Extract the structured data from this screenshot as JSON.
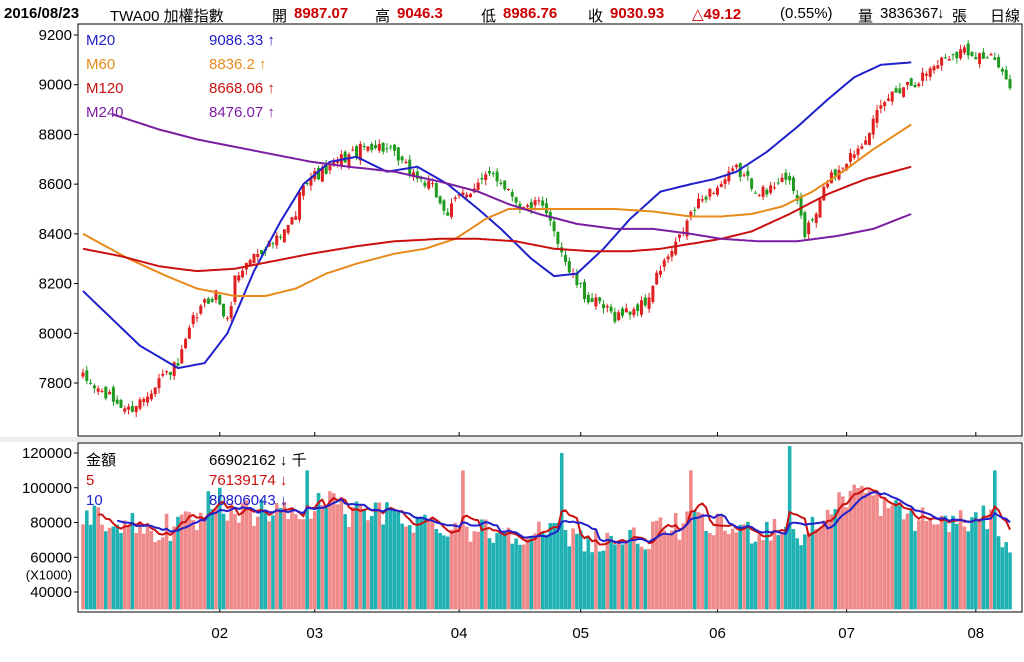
{
  "header": {
    "date": "2016/08/23",
    "symbol": "TWA00 加權指數",
    "open_label": "開",
    "open": "8987.07",
    "high_label": "高",
    "high": "9046.3",
    "low_label": "低",
    "low": "8986.76",
    "close_label": "收",
    "close": "9030.93",
    "change": "△49.12",
    "change_pct": "(0.55%)",
    "volume_label": "量",
    "volume": "3836367",
    "volume_arrow": "↓",
    "volume_unit": "張",
    "period": "日線"
  },
  "chart_data": [
    {
      "type": "candlestick",
      "ylim": [
        7600,
        9200
      ],
      "yticks": [
        7800,
        8000,
        8200,
        8400,
        8600,
        8800,
        9000,
        9200
      ],
      "x_tick_labels": [
        "02",
        "03",
        "04",
        "05",
        "06",
        "07",
        "08"
      ],
      "legend": [
        {
          "name": "M20",
          "value": "9086.33",
          "arrow": "↑",
          "color": "#2020cc"
        },
        {
          "name": "M60",
          "value": "8836.2",
          "arrow": "↑",
          "color": "#e88a1a"
        },
        {
          "name": "M120",
          "value": "8668.06",
          "arrow": "↑",
          "color": "#cc1010"
        },
        {
          "name": "M240",
          "value": "8476.07",
          "arrow": "↑",
          "color": "#7b1fa2"
        }
      ],
      "anchors": {
        "M20": [
          [
            0,
            8170
          ],
          [
            15,
            7950
          ],
          [
            25,
            7860
          ],
          [
            32,
            7880
          ],
          [
            38,
            8000
          ],
          [
            45,
            8250
          ],
          [
            52,
            8450
          ],
          [
            58,
            8600
          ],
          [
            65,
            8690
          ],
          [
            72,
            8710
          ],
          [
            80,
            8650
          ],
          [
            88,
            8670
          ],
          [
            96,
            8600
          ],
          [
            104,
            8500
          ],
          [
            110,
            8420
          ],
          [
            118,
            8300
          ],
          [
            124,
            8230
          ],
          [
            130,
            8240
          ],
          [
            137,
            8340
          ],
          [
            144,
            8460
          ],
          [
            152,
            8570
          ],
          [
            160,
            8600
          ],
          [
            166,
            8620
          ],
          [
            172,
            8650
          ],
          [
            180,
            8730
          ],
          [
            188,
            8830
          ],
          [
            196,
            8940
          ],
          [
            203,
            9030
          ],
          [
            210,
            9080
          ],
          [
            218,
            9090
          ]
        ],
        "M60": [
          [
            0,
            8400
          ],
          [
            12,
            8300
          ],
          [
            22,
            8230
          ],
          [
            30,
            8180
          ],
          [
            40,
            8150
          ],
          [
            48,
            8150
          ],
          [
            56,
            8180
          ],
          [
            64,
            8240
          ],
          [
            72,
            8280
          ],
          [
            82,
            8320
          ],
          [
            90,
            8340
          ],
          [
            98,
            8380
          ],
          [
            106,
            8460
          ],
          [
            112,
            8500
          ],
          [
            120,
            8500
          ],
          [
            130,
            8500
          ],
          [
            140,
            8500
          ],
          [
            150,
            8490
          ],
          [
            160,
            8470
          ],
          [
            168,
            8470
          ],
          [
            176,
            8480
          ],
          [
            184,
            8510
          ],
          [
            192,
            8570
          ],
          [
            200,
            8650
          ],
          [
            208,
            8740
          ],
          [
            218,
            8840
          ]
        ],
        "M120": [
          [
            0,
            8340
          ],
          [
            10,
            8310
          ],
          [
            20,
            8270
          ],
          [
            30,
            8250
          ],
          [
            40,
            8260
          ],
          [
            50,
            8290
          ],
          [
            60,
            8320
          ],
          [
            72,
            8350
          ],
          [
            82,
            8370
          ],
          [
            94,
            8380
          ],
          [
            104,
            8380
          ],
          [
            114,
            8370
          ],
          [
            124,
            8340
          ],
          [
            134,
            8330
          ],
          [
            144,
            8330
          ],
          [
            152,
            8340
          ],
          [
            160,
            8360
          ],
          [
            168,
            8380
          ],
          [
            176,
            8410
          ],
          [
            186,
            8480
          ],
          [
            196,
            8560
          ],
          [
            206,
            8620
          ],
          [
            218,
            8670
          ]
        ],
        "M240": [
          [
            8,
            8880
          ],
          [
            20,
            8820
          ],
          [
            30,
            8780
          ],
          [
            40,
            8750
          ],
          [
            50,
            8720
          ],
          [
            60,
            8690
          ],
          [
            70,
            8670
          ],
          [
            82,
            8650
          ],
          [
            94,
            8610
          ],
          [
            104,
            8570
          ],
          [
            112,
            8520
          ],
          [
            120,
            8480
          ],
          [
            130,
            8440
          ],
          [
            140,
            8420
          ],
          [
            150,
            8420
          ],
          [
            160,
            8400
          ],
          [
            168,
            8380
          ],
          [
            178,
            8370
          ],
          [
            188,
            8370
          ],
          [
            198,
            8390
          ],
          [
            208,
            8420
          ],
          [
            218,
            8480
          ]
        ]
      },
      "price_anchors": [
        [
          0,
          7820
        ],
        [
          6,
          7750
        ],
        [
          12,
          7690
        ],
        [
          16,
          7740
        ],
        [
          20,
          7820
        ],
        [
          25,
          7870
        ],
        [
          29,
          8050
        ],
        [
          32,
          8120
        ],
        [
          35,
          8160
        ],
        [
          38,
          8040
        ],
        [
          40,
          8220
        ],
        [
          44,
          8300
        ],
        [
          48,
          8350
        ],
        [
          52,
          8380
        ],
        [
          56,
          8480
        ],
        [
          58,
          8620
        ],
        [
          62,
          8640
        ],
        [
          65,
          8660
        ],
        [
          68,
          8700
        ],
        [
          72,
          8730
        ],
        [
          76,
          8760
        ],
        [
          80,
          8740
        ],
        [
          84,
          8680
        ],
        [
          88,
          8630
        ],
        [
          92,
          8580
        ],
        [
          96,
          8480
        ],
        [
          99,
          8550
        ],
        [
          104,
          8600
        ],
        [
          108,
          8640
        ],
        [
          112,
          8580
        ],
        [
          116,
          8500
        ],
        [
          120,
          8520
        ],
        [
          124,
          8420
        ],
        [
          128,
          8250
        ],
        [
          132,
          8150
        ],
        [
          136,
          8110
        ],
        [
          140,
          8070
        ],
        [
          144,
          8090
        ],
        [
          148,
          8120
        ],
        [
          152,
          8260
        ],
        [
          156,
          8350
        ],
        [
          160,
          8480
        ],
        [
          164,
          8560
        ],
        [
          168,
          8600
        ],
        [
          172,
          8660
        ],
        [
          176,
          8600
        ],
        [
          180,
          8560
        ],
        [
          184,
          8640
        ],
        [
          188,
          8540
        ],
        [
          190,
          8400
        ],
        [
          193,
          8480
        ],
        [
          196,
          8620
        ],
        [
          200,
          8680
        ],
        [
          204,
          8750
        ],
        [
          208,
          8850
        ],
        [
          212,
          8950
        ],
        [
          216,
          9000
        ],
        [
          220,
          9020
        ],
        [
          224,
          9080
        ],
        [
          228,
          9120
        ],
        [
          232,
          9140
        ],
        [
          236,
          9120
        ],
        [
          240,
          9100
        ],
        [
          242,
          9030
        ],
        [
          244,
          9010
        ]
      ]
    },
    {
      "type": "bar",
      "ylim": [
        30000,
        125000
      ],
      "yticks": [
        40000,
        60000,
        80000,
        100000,
        120000
      ],
      "unit_label": "(X1000)",
      "legend": [
        {
          "name": "金額",
          "value": "66902162",
          "arrow": "↓",
          "unit": "千",
          "color": "#000000"
        },
        {
          "name": "5",
          "value": "76139174",
          "arrow": "↓",
          "color": "#cc1010"
        },
        {
          "name": "10",
          "value": "80806043",
          "arrow": "↓",
          "color": "#2020cc"
        }
      ],
      "up_color": "#f08a8a",
      "down_color": "#20b2b2",
      "volume_anchors": [
        [
          0,
          85000
        ],
        [
          10,
          80000
        ],
        [
          20,
          75000
        ],
        [
          30,
          80000
        ],
        [
          40,
          85000
        ],
        [
          50,
          86000
        ],
        [
          60,
          85000
        ],
        [
          66,
          100000
        ],
        [
          70,
          85000
        ],
        [
          80,
          85000
        ],
        [
          90,
          80000
        ],
        [
          100,
          77000
        ],
        [
          108,
          75000
        ],
        [
          118,
          75000
        ],
        [
          128,
          72000
        ],
        [
          136,
          70000
        ],
        [
          146,
          70000
        ],
        [
          152,
          75000
        ],
        [
          160,
          80000
        ],
        [
          168,
          77000
        ],
        [
          176,
          75000
        ],
        [
          184,
          78000
        ],
        [
          190,
          72000
        ],
        [
          196,
          85000
        ],
        [
          204,
          100000
        ],
        [
          212,
          88000
        ],
        [
          220,
          82000
        ],
        [
          230,
          80000
        ],
        [
          238,
          82000
        ],
        [
          244,
          67000
        ]
      ],
      "spikes": [
        [
          22,
          85000
        ],
        [
          33,
          98000
        ],
        [
          36,
          100000
        ],
        [
          40,
          85000
        ],
        [
          59,
          110000
        ],
        [
          63,
          90000
        ],
        [
          65,
          98000
        ],
        [
          100,
          110000
        ],
        [
          126,
          120000
        ],
        [
          160,
          110000
        ],
        [
          186,
          125000
        ],
        [
          200,
          95000
        ],
        [
          240,
          110000
        ]
      ]
    }
  ]
}
